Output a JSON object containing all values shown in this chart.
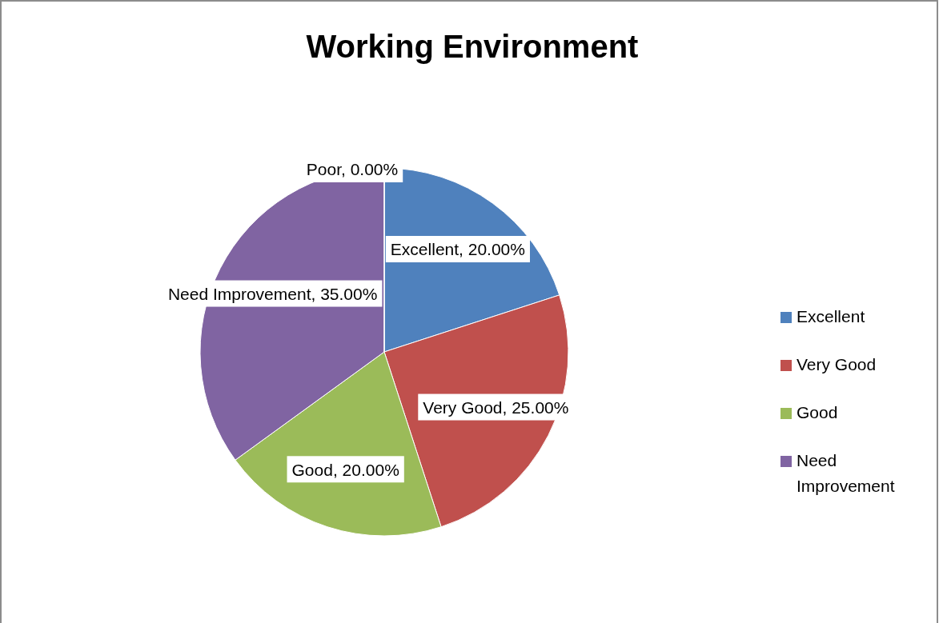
{
  "chart_data": {
    "type": "pie",
    "title": "Working Environment",
    "categories": [
      "Excellent",
      "Very Good",
      "Good",
      "Need Improvement",
      "Poor"
    ],
    "values": [
      20,
      25,
      20,
      35,
      0
    ],
    "colors": [
      "#4f81bd",
      "#c0504d",
      "#9bbb59",
      "#8064a2",
      "#4bacc6"
    ],
    "value_labels": [
      ", 20.00%",
      ", 25.00%",
      ", 20.00%",
      ", 35.00%",
      ", 0.00%"
    ],
    "legend": "right"
  }
}
